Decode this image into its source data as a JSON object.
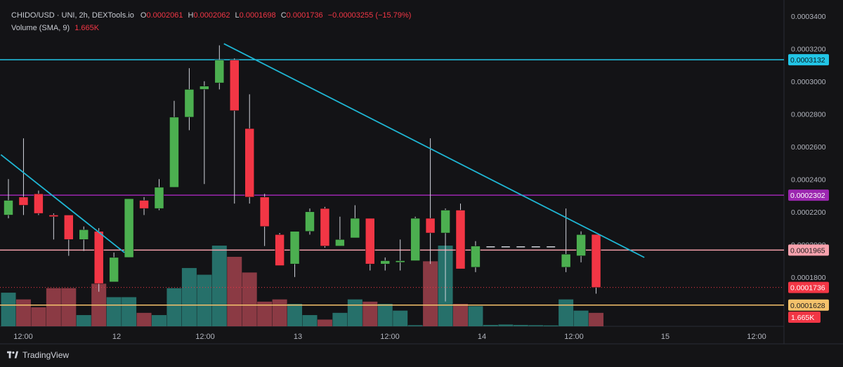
{
  "header": {
    "symbol_line": "CHIDO/USD · UNI, 2h, DEXTools.io",
    "open_label": "O",
    "open": "0.0002061",
    "high_label": "H",
    "high": "0.0002062",
    "low_label": "L",
    "low": "0.0001698",
    "close_label": "C",
    "close": "0.0001736",
    "change": "−0.00003255 (−15.79%)",
    "volume_label": "Volume (SMA, 9)",
    "volume_value": "1.665K"
  },
  "branding": {
    "logo_text": "TradingView"
  },
  "colors": {
    "background": "#141416",
    "up": "#4caf50",
    "down": "#f23645",
    "vol_up": "#26706a",
    "vol_down": "#8b3a44",
    "trendline": "#1fb6d4",
    "resistance": "#22c5e6",
    "purple_level": "#9c27b0",
    "pink_level": "#f7a1ad",
    "yellow_level": "#f5c26b",
    "last_price": "#f23645"
  },
  "chart_data": {
    "type": "candlestick",
    "title": "",
    "y_axis": {
      "ylim": [
        0.0001498,
        0.0003498
      ],
      "ticks": [
        "0.0003400",
        "0.0003200",
        "0.0003000",
        "0.0002800",
        "0.0002600",
        "0.0002400",
        "0.0002200",
        "0.0002000",
        "0.0001800"
      ]
    },
    "x_axis": {
      "ticks": [
        "12:00",
        "12",
        "12:00",
        "13",
        "12:00",
        "14",
        "12:00",
        "15",
        "12:00"
      ]
    },
    "candles": [
      {
        "o": 0.000218,
        "h": 0.00024,
        "l": 0.000216,
        "c": 0.000227
      },
      {
        "o": 0.000229,
        "h": 0.000265,
        "l": 0.000218,
        "c": 0.000224
      },
      {
        "o": 0.000231,
        "h": 0.000233,
        "l": 0.000218,
        "c": 0.000219
      },
      {
        "o": 0.000218,
        "h": 0.000219,
        "l": 0.000203,
        "c": 0.000217
      },
      {
        "o": 0.000218,
        "h": 0.000218,
        "l": 0.000193,
        "c": 0.000203
      },
      {
        "o": 0.000203,
        "h": 0.000211,
        "l": 0.000196,
        "c": 0.000209
      },
      {
        "o": 0.000208,
        "h": 0.00021,
        "l": 0.000171,
        "c": 0.000176
      },
      {
        "o": 0.000177,
        "h": 0.000195,
        "l": 0.000177,
        "c": 0.000192
      },
      {
        "o": 0.000192,
        "h": 0.000228,
        "l": 0.000192,
        "c": 0.000228
      },
      {
        "o": 0.000227,
        "h": 0.000229,
        "l": 0.000218,
        "c": 0.000222
      },
      {
        "o": 0.000222,
        "h": 0.00024,
        "l": 0.000221,
        "c": 0.000235
      },
      {
        "o": 0.000235,
        "h": 0.000288,
        "l": 0.000235,
        "c": 0.000278
      },
      {
        "o": 0.000278,
        "h": 0.000308,
        "l": 0.00027,
        "c": 0.000295
      },
      {
        "o": 0.000295,
        "h": 0.0003,
        "l": 0.000237,
        "c": 0.000297
      },
      {
        "o": 0.000299,
        "h": 0.000322,
        "l": 0.000295,
        "c": 0.000313
      },
      {
        "o": 0.000313,
        "h": 0.000314,
        "l": 0.000225,
        "c": 0.000282
      },
      {
        "o": 0.000271,
        "h": 0.000292,
        "l": 0.000225,
        "c": 0.000229
      },
      {
        "o": 0.000229,
        "h": 0.000231,
        "l": 0.000199,
        "c": 0.000211
      },
      {
        "o": 0.000206,
        "h": 0.000207,
        "l": 0.000187,
        "c": 0.000187
      },
      {
        "o": 0.000188,
        "h": 0.000208,
        "l": 0.00018,
        "c": 0.000208
      },
      {
        "o": 0.000208,
        "h": 0.000222,
        "l": 0.000206,
        "c": 0.00022
      },
      {
        "o": 0.000222,
        "h": 0.000223,
        "l": 0.000198,
        "c": 0.000199
      },
      {
        "o": 0.000199,
        "h": 0.000217,
        "l": 0.000199,
        "c": 0.000203
      },
      {
        "o": 0.000204,
        "h": 0.000224,
        "l": 0.000204,
        "c": 0.000216
      },
      {
        "o": 0.000216,
        "h": 0.000216,
        "l": 0.000184,
        "c": 0.000188
      },
      {
        "o": 0.000188,
        "h": 0.000192,
        "l": 0.000184,
        "c": 0.00019
      },
      {
        "o": 0.000189,
        "h": 0.000203,
        "l": 0.000184,
        "c": 0.00019
      },
      {
        "o": 0.00019,
        "h": 0.000217,
        "l": 0.00019,
        "c": 0.000216
      },
      {
        "o": 0.000216,
        "h": 0.000265,
        "l": 0.000188,
        "c": 0.000207
      },
      {
        "o": 0.000207,
        "h": 0.000222,
        "l": 0.000165,
        "c": 0.000221
      },
      {
        "o": 0.000221,
        "h": 0.000225,
        "l": 0.000185,
        "c": 0.000185
      },
      {
        "o": 0.000186,
        "h": 0.000202,
        "l": 0.000183,
        "c": 0.000199
      },
      {
        "o": 0.0001985,
        "h": 0.0001985,
        "l": 0.0001985,
        "c": 0.0001985
      },
      {
        "o": 0.0001985,
        "h": 0.0001985,
        "l": 0.0001985,
        "c": 0.0001985
      },
      {
        "o": 0.0001985,
        "h": 0.0001985,
        "l": 0.0001985,
        "c": 0.0001985
      },
      {
        "o": 0.0001985,
        "h": 0.0001985,
        "l": 0.0001985,
        "c": 0.0001985
      },
      {
        "o": 0.0001985,
        "h": 0.0001985,
        "l": 0.0001985,
        "c": 0.0001985
      },
      {
        "o": 0.000186,
        "h": 0.000222,
        "l": 0.000183,
        "c": 0.000194
      },
      {
        "o": 0.000193,
        "h": 0.000208,
        "l": 0.000189,
        "c": 0.000206
      },
      {
        "o": 0.0002061,
        "h": 0.0002062,
        "l": 0.0001698,
        "c": 0.0001736
      }
    ],
    "volume": {
      "max": 3.6,
      "values": [
        1.5,
        1.2,
        0.85,
        1.7,
        1.7,
        0.5,
        1.9,
        1.3,
        1.3,
        0.6,
        0.5,
        1.7,
        2.6,
        2.3,
        3.6,
        3.1,
        2.4,
        1.1,
        1.2,
        1.0,
        0.5,
        0.3,
        0.6,
        1.2,
        1.1,
        1.0,
        0.7,
        0.05,
        2.9,
        3.6,
        1.0,
        0.9,
        0.06,
        0.08,
        0.06,
        0.05,
        0.04,
        1.2,
        0.7,
        0.6
      ]
    },
    "levels": [
      {
        "name": "resistance",
        "value": 0.0003132,
        "label": "0.0003132"
      },
      {
        "name": "purple-level",
        "value": 0.0002302,
        "label": "0.0002302"
      },
      {
        "name": "pink-level",
        "value": 0.0001965,
        "label": "0.0001965"
      },
      {
        "name": "last-price",
        "value": 0.0001736,
        "label": "0.0001736"
      },
      {
        "name": "yellow-level",
        "value": 0.0001628,
        "label": "0.0001628"
      }
    ],
    "volume_tag": "1.665K",
    "trendlines": [
      {
        "name": "trendline-short",
        "from": {
          "bar": -0.5,
          "price": 0.000255
        },
        "to": {
          "bar": 7.7,
          "price": 0.000195
        }
      },
      {
        "name": "trendline-long",
        "from": {
          "bar": 14.3,
          "price": 0.000323
        },
        "to": {
          "bar": 42.2,
          "price": 0.000192
        }
      }
    ]
  }
}
